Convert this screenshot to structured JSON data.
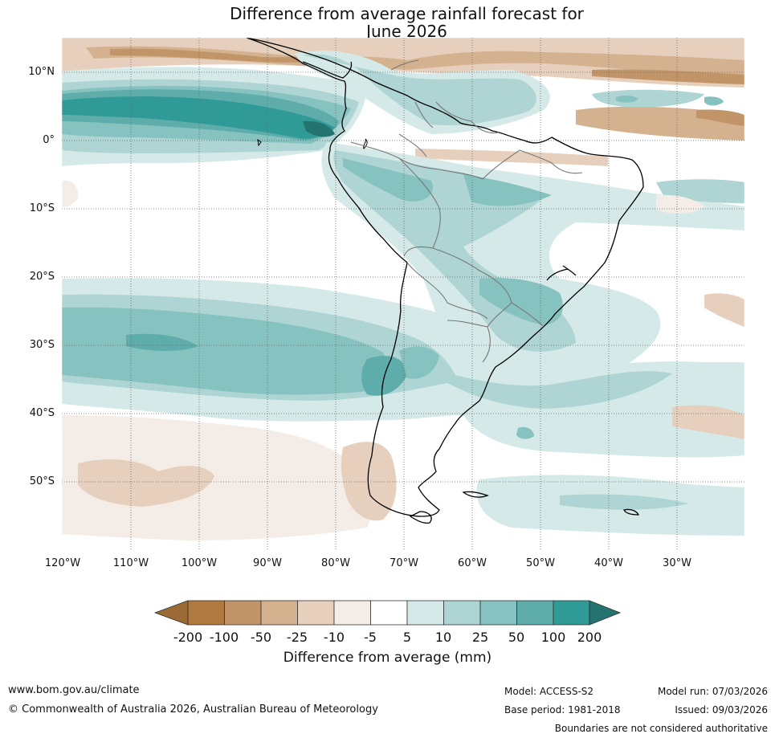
{
  "title": {
    "line1": "Difference from average rainfall forecast for",
    "line2": "June 2026"
  },
  "map": {
    "region": "South America",
    "lat_labels": [
      "10°N",
      "0°",
      "10°S",
      "20°S",
      "30°S",
      "40°S",
      "50°S"
    ],
    "lon_labels": [
      "120°W",
      "110°W",
      "100°W",
      "90°W",
      "80°W",
      "70°W",
      "60°W",
      "50°W",
      "40°W",
      "30°W"
    ]
  },
  "legend": {
    "title": "Difference from average (mm)",
    "tick_labels": [
      "-200",
      "-100",
      "-50",
      "-25",
      "-10",
      "-5",
      "5",
      "10",
      "25",
      "50",
      "100",
      "200"
    ],
    "colors": [
      "#9b6a35",
      "#b0793f",
      "#c29569",
      "#d4b18f",
      "#e6d0bd",
      "#f4ece6",
      "#ffffff",
      "#d5eae8",
      "#aed5d3",
      "#86c2bf",
      "#5eadaa",
      "#309a96",
      "#237370"
    ]
  },
  "footer": {
    "website": "www.bom.gov.au/climate",
    "copyright": "© Commonwealth of Australia 2026, Australian Bureau of Meteorology",
    "model": "Model: ACCESS-S2",
    "base_period": "Base period: 1981-2018",
    "model_run": "Model run: 07/03/2026",
    "issued": "Issued: 09/03/2026",
    "disclaimer": "Boundaries are not considered authoritative"
  }
}
